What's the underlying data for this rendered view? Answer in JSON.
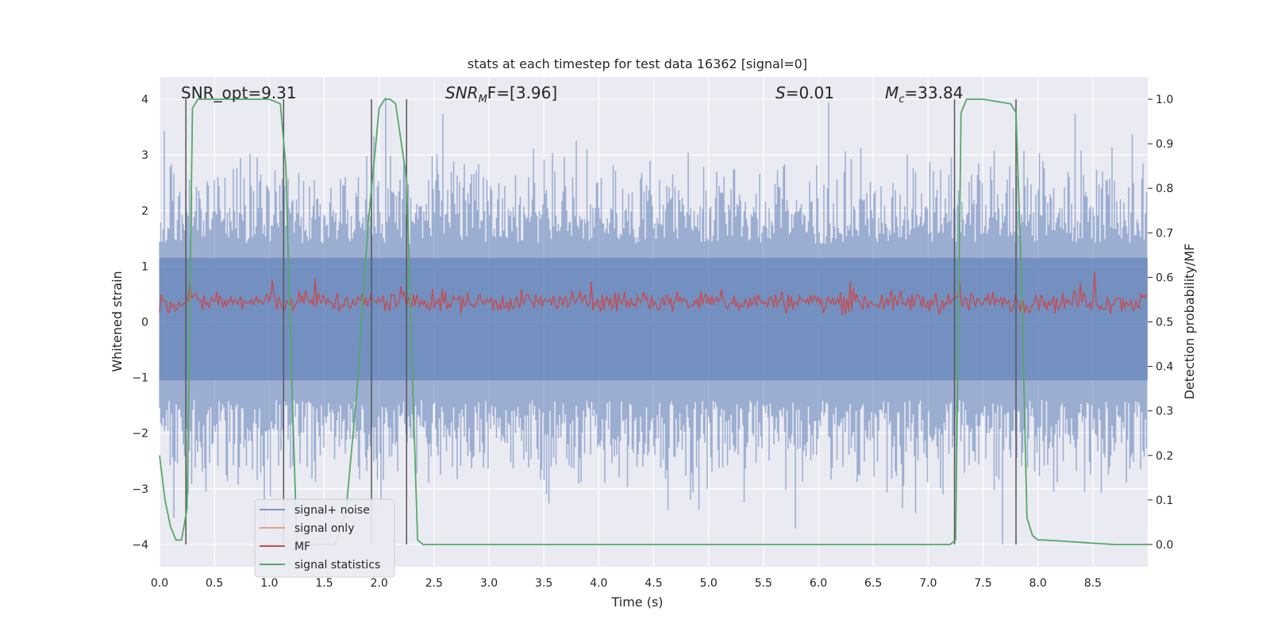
{
  "chart_data": {
    "type": "line",
    "title": "stats at each timestep for test data 16362 [signal=0]",
    "xlabel": "Time (s)",
    "ylabel": "Whitened strain",
    "y2label": "Detection probability/MF",
    "xlim": [
      0.0,
      9.0
    ],
    "ylim": [
      -4.4,
      4.4
    ],
    "y2lim": [
      -0.05,
      1.05
    ],
    "xticks": [
      0.0,
      0.5,
      1.0,
      1.5,
      2.0,
      2.5,
      3.0,
      3.5,
      4.0,
      4.5,
      5.0,
      5.5,
      6.0,
      6.5,
      7.0,
      7.5,
      8.0,
      8.5
    ],
    "xtick_labels": [
      "0.0",
      "0.5",
      "1.0",
      "1.5",
      "2.0",
      "2.5",
      "3.0",
      "3.5",
      "4.0",
      "4.5",
      "5.0",
      "5.5",
      "6.0",
      "6.5",
      "7.0",
      "7.5",
      "8.0",
      "8.5"
    ],
    "yticks": [
      4,
      3,
      2,
      1,
      0,
      -1,
      -2,
      -3,
      -4
    ],
    "ytick_labels": [
      "4",
      "3",
      "2",
      "1",
      "0",
      "−1",
      "−2",
      "−3",
      "−4"
    ],
    "y2ticks": [
      1.0,
      0.9,
      0.8,
      0.7,
      0.6,
      0.5,
      0.4,
      0.3,
      0.2,
      0.1,
      0.0
    ],
    "y2tick_labels": [
      "1.0",
      "0.9",
      "0.8",
      "0.7",
      "0.6",
      "0.5",
      "0.4",
      "0.3",
      "0.2",
      "0.1",
      "0.0"
    ],
    "grid": true,
    "legend_position": "lower-left",
    "annotations": {
      "snr_opt": "SNR_opt=9.31",
      "snr_mf_main": "SNR",
      "snr_mf_sub": "M",
      "snr_mf_rest": "F=[3.96]",
      "s_main": "S",
      "s_rest": "=0.01",
      "mc_main": "M",
      "mc_sub": "c",
      "mc_rest": "=33.84"
    },
    "series": [
      {
        "name": "signal+ noise",
        "color": "#4c72b0",
        "axis": "left",
        "style": "noise band, approx ±2.2 typical, peaks to ±4"
      },
      {
        "name": "signal only",
        "color": "#dd8452",
        "axis": "left",
        "values": []
      },
      {
        "name": "MF",
        "color": "#c44e52",
        "axis": "right",
        "style": "band approx 0.50–0.63"
      },
      {
        "name": "signal statistics",
        "color": "#55a868",
        "axis": "right",
        "x": [
          0.0,
          0.05,
          0.1,
          0.15,
          0.2,
          0.25,
          0.3,
          0.35,
          0.5,
          0.8,
          1.0,
          1.1,
          1.15,
          1.2,
          1.25,
          1.3,
          1.6,
          1.7,
          1.8,
          1.9,
          2.0,
          2.05,
          2.1,
          2.15,
          2.25,
          2.3,
          2.35,
          2.4,
          2.45,
          2.5,
          7.0,
          7.2,
          7.25,
          7.3,
          7.35,
          7.5,
          7.75,
          7.8,
          7.85,
          7.9,
          7.95,
          8.0,
          8.05,
          8.2,
          8.5,
          8.7,
          9.0
        ],
        "y": [
          0.2,
          0.1,
          0.04,
          0.01,
          0.01,
          0.08,
          0.98,
          1.0,
          1.0,
          1.0,
          1.0,
          0.99,
          0.85,
          0.4,
          0.01,
          0.0,
          0.0,
          0.08,
          0.35,
          0.72,
          0.98,
          1.0,
          1.0,
          0.99,
          0.82,
          0.4,
          0.01,
          0.0,
          0.0,
          0.0,
          0.0,
          0.0,
          0.01,
          0.97,
          1.0,
          1.0,
          0.99,
          0.97,
          0.6,
          0.06,
          0.02,
          0.01,
          0.01,
          0.008,
          0.003,
          0.0,
          0.0
        ]
      }
    ],
    "vertical_lines": [
      0.24,
      1.13,
      1.93,
      2.25,
      7.24,
      7.8
    ]
  }
}
